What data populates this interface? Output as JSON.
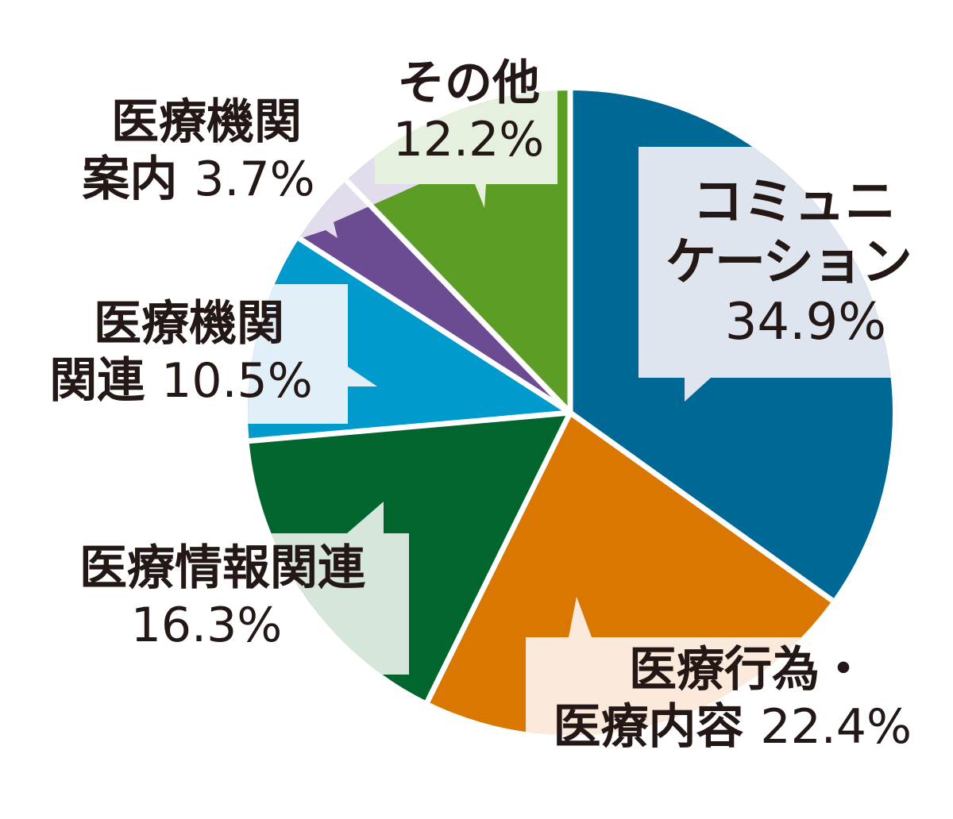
{
  "chart_data": {
    "type": "pie",
    "title": "",
    "start_angle_deg": 0,
    "direction": "clockwise",
    "categories": [
      "コミュニケーション",
      "医療行為・医療内容",
      "医療情報関連",
      "医療機関関連",
      "医療機関案内",
      "その他"
    ],
    "values": [
      34.9,
      22.4,
      16.3,
      10.5,
      3.7,
      12.2
    ],
    "unit": "%",
    "colors": [
      "#006894",
      "#d97700",
      "#00662e",
      "#009acd",
      "#6b4c93",
      "#5c9e25"
    ],
    "callout_tints": [
      "#dfe5ee",
      "#fbeadb",
      "#d7e6da",
      "#e1eff9",
      "#e2dcec",
      "#e6f0de"
    ],
    "legend": "none (labels in callouts)"
  },
  "labels": {
    "communication": {
      "line1": "コミュニケ",
      "line1b": "ーション",
      "name": "コミュニケーション",
      "pct": "34.9%"
    },
    "medical_act": {
      "line1": "医療行為・",
      "line2": "医療内容",
      "pct": "22.4%"
    },
    "medical_info": {
      "line1": "医療情報関連",
      "pct": "16.3%"
    },
    "facility_related": {
      "line1": "医療機関",
      "line2": "関連",
      "pct": "10.5%"
    },
    "facility_guide": {
      "line1": "医療機関",
      "line2": "案内",
      "pct": "3.7%"
    },
    "other": {
      "line1": "その他",
      "pct": "12.2%"
    }
  },
  "text": {
    "comm_l1": "コミュニ",
    "comm_l2": "ケーション",
    "comm_pct": "34.9%",
    "act_l1": "医療行為・",
    "act_l2": "医療内容",
    "act_pct": "22.4%",
    "info_l1": "医療情報関連",
    "info_pct": "16.3%",
    "rel_l1": "医療機関",
    "rel_l2": "関連",
    "rel_pct": "10.5%",
    "guide_l1": "医療機関",
    "guide_l2": "案内",
    "guide_pct": "3.7%",
    "other_l1": "その他",
    "other_pct": "12.2%"
  }
}
